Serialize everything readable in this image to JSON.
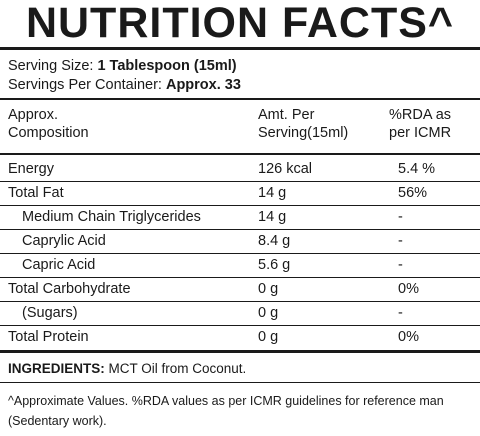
{
  "title": "NUTRITION  FACTS^",
  "serving_size": {
    "label": "Serving Size: ",
    "value": "1 Tablespoon (15ml)"
  },
  "servings_per_container": {
    "label": "Servings Per Container: ",
    "value": "Approx. 33"
  },
  "columns": {
    "composition": "Approx.\nComposition",
    "amount": "Amt. Per\nServing(15ml)",
    "rda": "%RDA as\nper ICMR"
  },
  "rows": [
    {
      "name": "Energy",
      "amount": "126  kcal",
      "rda": "5.4 %"
    },
    {
      "name": "Total Fat",
      "amount": "14 g",
      "rda": "56%"
    },
    {
      "name": "Medium Chain Triglycerides",
      "amount": "14 g",
      "rda": "-"
    },
    {
      "name": "Caprylic Acid",
      "amount": "8.4 g",
      "rda": "-"
    },
    {
      "name": "Capric Acid",
      "amount": "5.6 g",
      "rda": "-"
    },
    {
      "name": "Total Carbohydrate",
      "amount": "0 g",
      "rda": "0%"
    },
    {
      "name": "(Sugars)",
      "amount": "0 g",
      "rda": "-"
    },
    {
      "name": "Total Protein",
      "amount": "0 g",
      "rda": "0%"
    }
  ],
  "ingredients": {
    "label": "INGREDIENTS: ",
    "value": "MCT Oil from Coconut."
  },
  "footnote": "^Approximate Values. %RDA values as per ICMR guidelines for reference man (Sedentary work)."
}
